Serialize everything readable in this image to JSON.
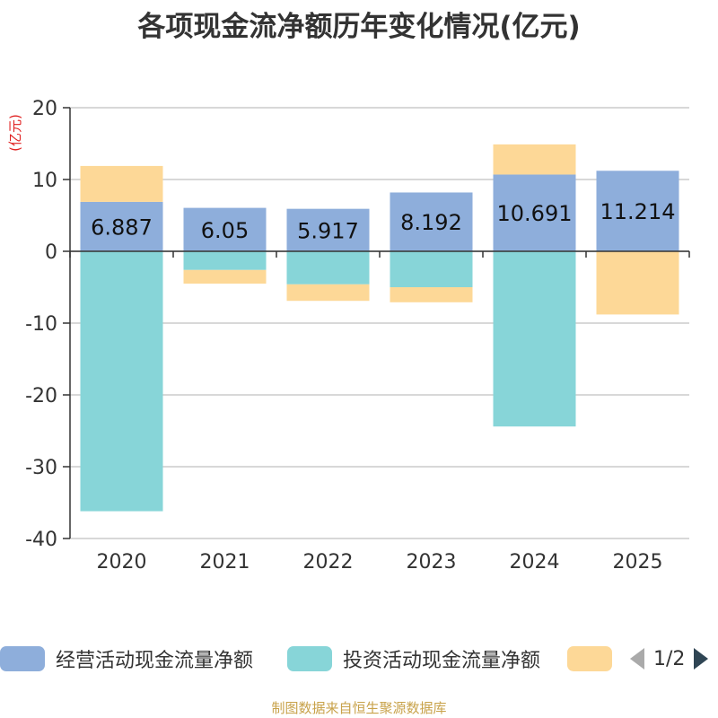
{
  "chart_data": {
    "type": "bar",
    "stacked": true,
    "title": "各项现金流净额历年变化情况(亿元)",
    "ylabel": "(亿元)",
    "xlabel": "",
    "ylim": [
      -40,
      20
    ],
    "yticks": [
      -40,
      -30,
      -20,
      -10,
      0,
      10,
      20
    ],
    "categories": [
      "2020",
      "2021",
      "2022",
      "2023",
      "2024",
      "2025"
    ],
    "series": [
      {
        "name": "经营活动现金流量净额",
        "color": "#8eaedb",
        "values": [
          6.887,
          6.05,
          5.917,
          8.192,
          10.691,
          11.214
        ],
        "labels": [
          "6.887",
          "6.05",
          "5.917",
          "8.192",
          "10.691",
          "11.214"
        ]
      },
      {
        "name": "投资活动现金流量净额",
        "color": "#87d5d8",
        "values": [
          -36.2,
          -2.6,
          -4.6,
          -5.0,
          -24.4,
          0
        ]
      },
      {
        "name": "",
        "color": "#fdd897",
        "values": [
          5.0,
          -1.9,
          -2.3,
          -2.1,
          4.2,
          -8.8
        ]
      }
    ]
  },
  "legend": {
    "items": [
      "经营活动现金流量净额",
      "投资活动现金流量净额",
      ""
    ],
    "page": "1/2"
  },
  "footer": "制图数据来自恒生聚源数据库"
}
